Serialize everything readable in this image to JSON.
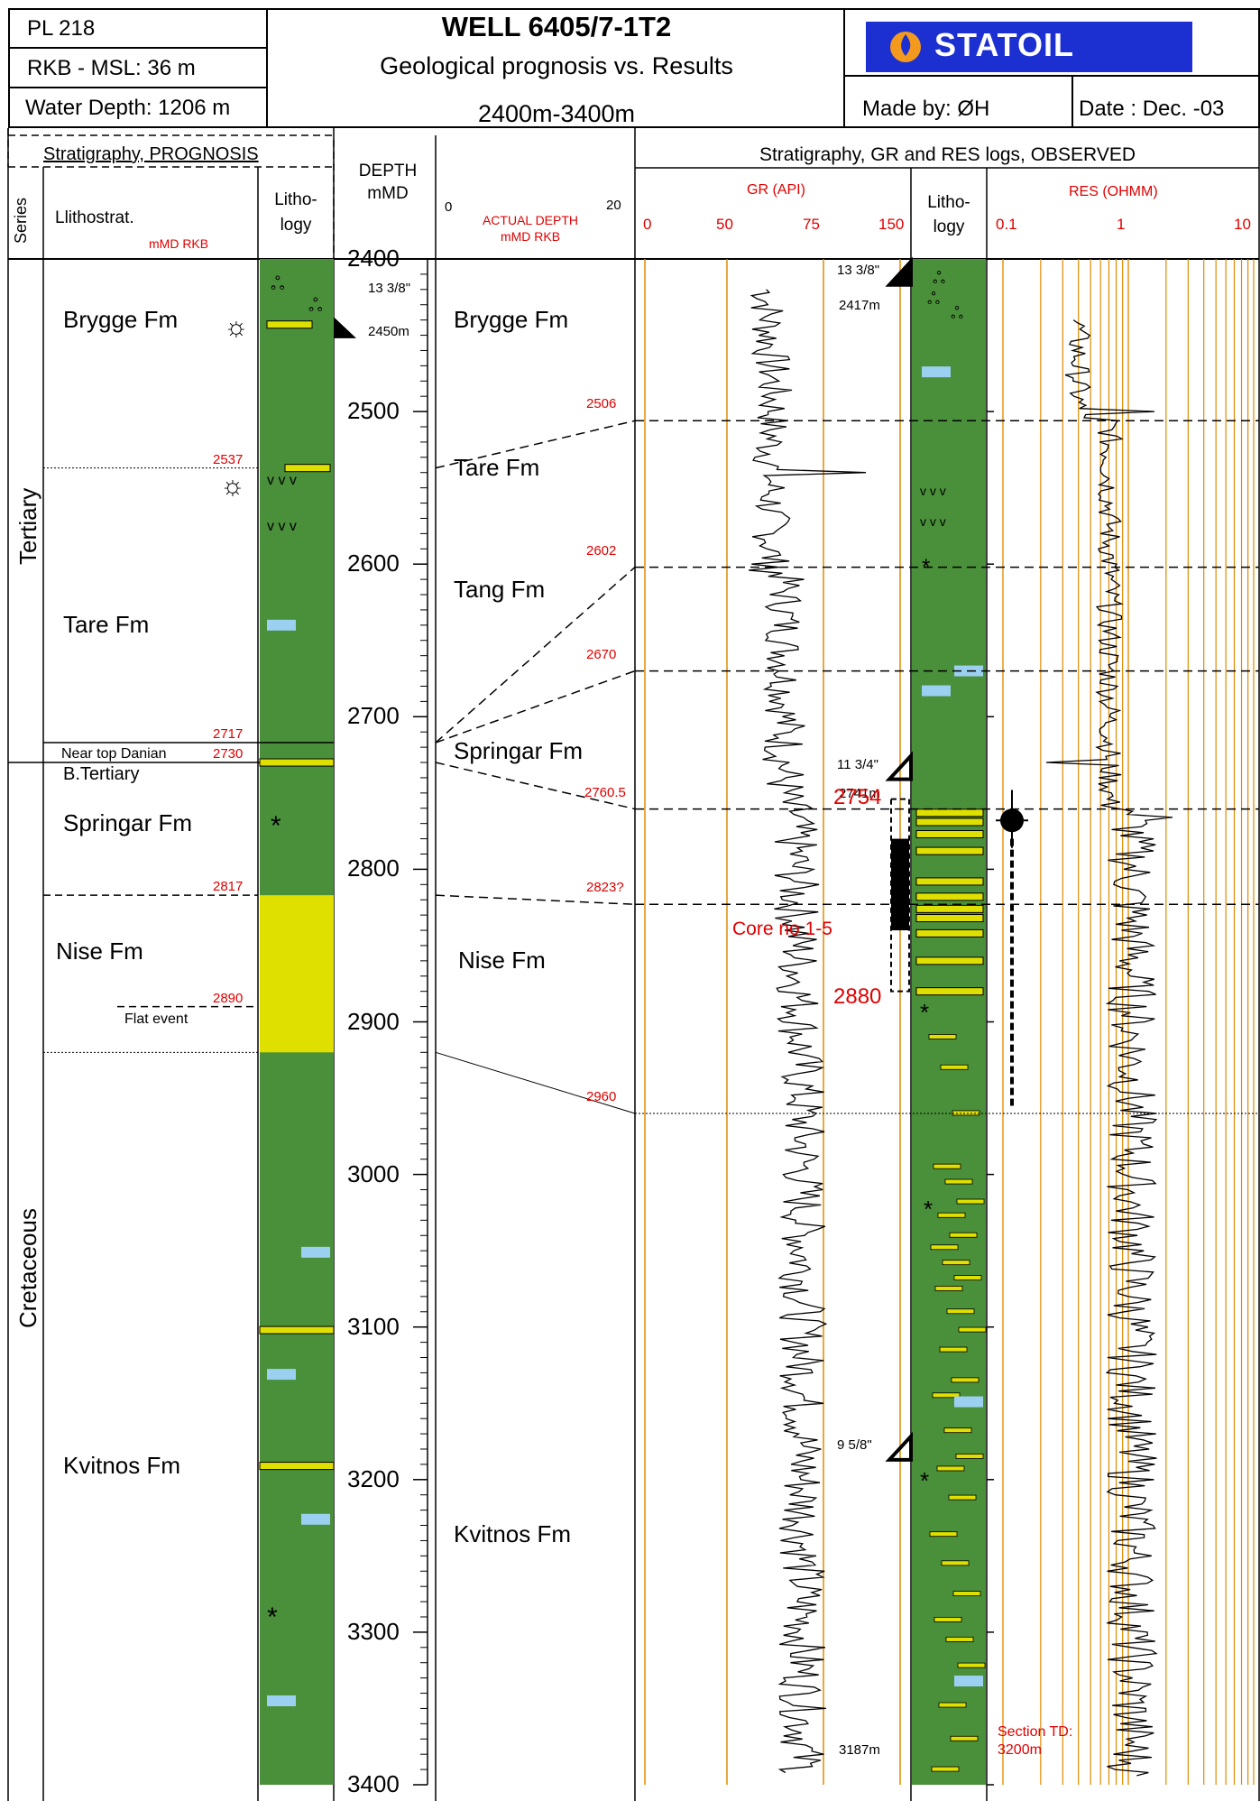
{
  "header": {
    "license": "PL 218",
    "rkb_msl": "RKB - MSL: 36 m",
    "water_depth": "Water Depth:  1206 m",
    "well_title": "WELL 6405/7-1T2",
    "subtitle": "Geological prognosis vs. Results",
    "interval": "2400m-3400m",
    "company_logo": "STATOIL",
    "made_by": "Made by:  ØH",
    "date": "Date : Dec. -03"
  },
  "column_headers": {
    "prognosis": "Stratigraphy, PROGNOSIS",
    "series": "Series",
    "lithostrat": "Llithostrat.",
    "lithostrat_unit": "mMD RKB",
    "lithology_left": "Litho-\nlogy",
    "depth": "DEPTH\nmMD",
    "actual_depth": "ACTUAL DEPTH\nmMD RKB",
    "actual_scale_min": "0",
    "actual_scale_max": "20",
    "observed": "Stratigraphy, GR and RES logs, OBSERVED",
    "gr_title": "GR (API)",
    "gr_ticks": [
      "0",
      "50",
      "75",
      "150"
    ],
    "lithology_right": "Litho-\nlogy",
    "res_title": "RES  (OHMM)",
    "res_ticks": [
      "0.1",
      "1",
      "10"
    ]
  },
  "depth_axis": {
    "min": 2400,
    "max": 3400,
    "labels": [
      "2400",
      "2500",
      "2600",
      "2700",
      "2800",
      "2900",
      "3000",
      "3100",
      "3200",
      "3300",
      "3400"
    ]
  },
  "series": [
    {
      "name": "Tertiary",
      "top": 2400,
      "base": 2730
    },
    {
      "name": "Cretaceous",
      "top": 2730,
      "base": 3400
    }
  ],
  "prognosis": {
    "formations": [
      {
        "name": "Brygge Fm",
        "depth": 2440
      },
      {
        "name": "Tare Fm",
        "depth": 2640
      },
      {
        "name": "B.Tertiary",
        "depth": 2740
      },
      {
        "name": "Springar Fm",
        "depth": 2770
      },
      {
        "name": "Nise Fm",
        "depth": 2854
      },
      {
        "name": "Kvitnos Fm",
        "depth": 3191
      }
    ],
    "tops": [
      {
        "label": "2537",
        "depth": 2537
      },
      {
        "label": "2717",
        "depth": 2717
      },
      {
        "label": "2730",
        "depth": 2730
      },
      {
        "label": "2817",
        "depth": 2817
      },
      {
        "label": "2890",
        "depth": 2890
      }
    ],
    "near_top_danian": "Near top Danian",
    "flat_event": "Flat event",
    "casing": [
      {
        "label": "13 3/8\"",
        "depth": 2422
      },
      {
        "label": "2450m",
        "depth": 2450
      }
    ]
  },
  "observed": {
    "formations": [
      {
        "name": "Brygge Fm",
        "depth": 2440
      },
      {
        "name": "Tare Fm",
        "depth": 2537
      },
      {
        "name": "Tang Fm",
        "depth": 2617
      },
      {
        "name": "Springar Fm",
        "depth": 2723
      },
      {
        "name": "Nise Fm",
        "depth": 2860
      },
      {
        "name": "Kvitnos Fm",
        "depth": 3236
      }
    ],
    "tops": [
      {
        "label": "2506",
        "depth": 2506
      },
      {
        "label": "2602",
        "depth": 2602
      },
      {
        "label": "2670",
        "depth": 2670
      },
      {
        "label": "2760.5",
        "depth": 2760.5
      },
      {
        "label": "2823?",
        "depth": 2823
      },
      {
        "label": "2960",
        "depth": 2960
      }
    ],
    "casing": [
      {
        "label": "13 3/8\"",
        "depth": 2417
      },
      {
        "label": "11 3/4\"",
        "depth": 2741
      },
      {
        "label": "9 5/8\"",
        "depth": 3187
      }
    ],
    "casing_depths": [
      {
        "label": "2417m",
        "depth": 2440
      },
      {
        "label": "2741m",
        "depth": 2760
      },
      {
        "label": "3187m",
        "depth": 3387
      }
    ],
    "core": {
      "label": "Core no 1-5",
      "top_label": "2754",
      "base_label": "2880",
      "top": 2754,
      "base": 2880
    },
    "section_td": "Section TD:\n3200m"
  },
  "colors": {
    "lithology_green": "#4a8f3a",
    "sandstone_yellow": "#e0e000",
    "limestone_blue": "#9cd0f0",
    "grid_orange": "#e08a00",
    "red_text": "#e00000"
  }
}
